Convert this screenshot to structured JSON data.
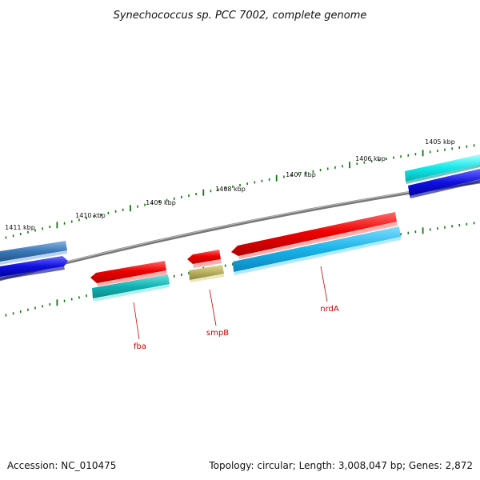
{
  "title": "Synechococcus sp. PCC 7002, complete genome",
  "footer": {
    "accession": "Accession: NC_010475",
    "summary": "Topology: circular; Length: 3,008,047 bp; Genes: 2,872"
  },
  "kbp_labels": [
    "1405 kbp",
    "1406 kbp",
    "1407 kbp",
    "1408 kbp",
    "1409 kbp",
    "1410 kbp",
    "1411 kbp"
  ],
  "gene_labels": [
    "fba",
    "smpB",
    "nrdA"
  ],
  "colors": {
    "red_cds": "#ee0000",
    "cyan_cds": "#18b4e8",
    "teal_cds": "#10b0b0",
    "olive_cds": "#b8b060",
    "blue_cds": "#1010e0",
    "steel_cds": "#3a78b8",
    "aqua_cds": "#10e8e8",
    "tick_green": "#117711",
    "backbone": "#888888",
    "label_line": "#cc0000"
  }
}
